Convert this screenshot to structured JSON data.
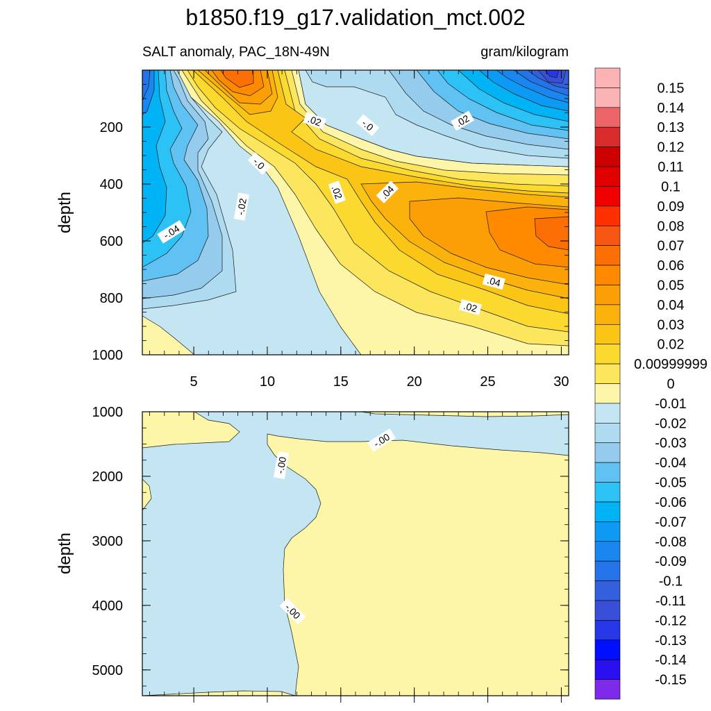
{
  "figure": {
    "title": "b1850.f19_g17.validation_mct.002",
    "left_subtitle": "SALT anomaly, PAC_18N-49N",
    "right_subtitle": "gram/kilogram"
  },
  "chart_data": [
    {
      "type": "contour",
      "panel": "upper",
      "xlabel": "",
      "ylabel": "depth",
      "xlim": [
        1.5,
        30.5
      ],
      "ylim": [
        0,
        1000
      ],
      "y_reversed": true,
      "x_ticks": [
        5,
        10,
        15,
        20,
        25,
        30
      ],
      "x_tick_labels": [
        "5",
        "10",
        "15",
        "20",
        "25",
        "30"
      ],
      "y_ticks": [
        200,
        400,
        600,
        800,
        1000
      ],
      "y_tick_labels": [
        "200",
        "400",
        "600",
        "800",
        "1000"
      ],
      "contour_labels": [
        {
          "text": "-.04",
          "x": 3.5,
          "y": 570
        },
        {
          "text": "-.02",
          "x": 8.3,
          "y": 480
        },
        {
          "text": "-.0",
          "x": 9.4,
          "y": 330
        },
        {
          "text": ".02",
          "x": 13.2,
          "y": 180
        },
        {
          "text": "-.0",
          "x": 16.8,
          "y": 195
        },
        {
          "text": ".02",
          "x": 23.3,
          "y": 180
        },
        {
          "text": ".02",
          "x": 14.7,
          "y": 430
        },
        {
          "text": ".04",
          "x": 18.2,
          "y": 430
        },
        {
          "text": ".04",
          "x": 25.4,
          "y": 745
        },
        {
          "text": ".02",
          "x": 23.8,
          "y": 835
        }
      ]
    },
    {
      "type": "contour",
      "panel": "lower",
      "xlabel": "",
      "ylabel": "depth",
      "xlim": [
        1.5,
        30.5
      ],
      "ylim": [
        1000,
        5400
      ],
      "y_reversed": true,
      "y_ticks": [
        1000,
        2000,
        3000,
        4000,
        5000
      ],
      "y_tick_labels": [
        "1000",
        "2000",
        "3000",
        "4000",
        "5000"
      ],
      "contour_labels": [
        {
          "text": "-.00",
          "x": 17.8,
          "y": 1450
        },
        {
          "text": "-.00",
          "x": 11.0,
          "y": 1830
        },
        {
          "text": "-.00",
          "x": 11.7,
          "y": 4100
        }
      ]
    }
  ],
  "colorbar": {
    "labels": [
      "0.15",
      "0.14",
      "0.13",
      "0.12",
      "0.11",
      "0.1",
      "0.09",
      "0.08",
      "0.07",
      "0.06",
      "0.05",
      "0.04",
      "0.03",
      "0.02",
      "0.00999999",
      "0",
      "-0.01",
      "-0.02",
      "-0.03",
      "-0.04",
      "-0.05",
      "-0.06",
      "-0.07",
      "-0.08",
      "-0.09",
      "-0.1",
      "-0.11",
      "-0.12",
      "-0.13",
      "-0.14",
      "-0.15"
    ],
    "colors": [
      "#fbb3b5",
      "#eb6569",
      "#d72c2b",
      "#cd0000",
      "#e00000",
      "#f10000",
      "#ff3000",
      "#f85713",
      "#fb6f05",
      "#ff8a00",
      "#fc9f06",
      "#fcb20d",
      "#fbc515",
      "#fbd92e",
      "#fbe65d",
      "#fdf6a8",
      "#c4e6f3",
      "#aedbef",
      "#95cbec",
      "#60c2f2",
      "#2dc2f5",
      "#00b3f4",
      "#0d9af4",
      "#1a86ef",
      "#2573e8",
      "#3460de",
      "#3a4fd8",
      "#2537e6",
      "#0010ff",
      "#2a10ef",
      "#7d2aea"
    ]
  }
}
